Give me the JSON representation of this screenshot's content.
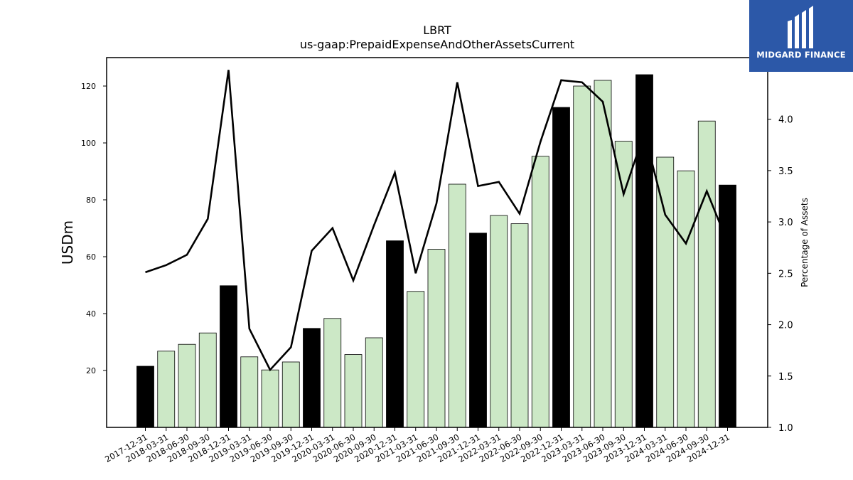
{
  "chart_data": {
    "type": "bar",
    "title": "LBRT",
    "subtitle": "us-gaap:PrepaidExpenseAndOtherAssetsCurrent",
    "ylabel": "USDm",
    "y2label": "Percentage of Assets",
    "ylim": [
      0,
      130
    ],
    "y2lim": [
      1.0,
      4.6
    ],
    "yticks": [
      20,
      40,
      60,
      80,
      100,
      120
    ],
    "y2ticks": [
      1.0,
      1.5,
      2.0,
      2.5,
      3.0,
      3.5,
      4.0,
      4.5
    ],
    "categories": [
      "2017-12-31",
      "2018-03-31",
      "2018-06-30",
      "2018-09-30",
      "2018-12-31",
      "2019-03-31",
      "2019-06-30",
      "2019-09-30",
      "2019-12-31",
      "2020-03-31",
      "2020-06-30",
      "2020-09-30",
      "2020-12-31",
      "2021-03-31",
      "2021-06-30",
      "2021-09-30",
      "2021-12-31",
      "2022-03-31",
      "2022-06-30",
      "2022-09-30",
      "2022-12-31",
      "2023-03-31",
      "2023-06-30",
      "2023-09-30",
      "2023-12-31",
      "2024-03-31",
      "2024-06-30",
      "2024-09-30",
      "2024-12-31"
    ],
    "series": [
      {
        "type": "bar",
        "values": [
          21.5,
          26.8,
          29.2,
          33.2,
          49.8,
          24.8,
          20.2,
          23.0,
          34.8,
          38.3,
          25.6,
          31.5,
          65.6,
          47.8,
          62.6,
          85.5,
          68.3,
          74.5,
          71.6,
          95.3,
          112.5,
          120.0,
          122.0,
          100.6,
          124.0,
          95.0,
          90.2,
          107.7,
          85.2
        ],
        "highlight": [
          true,
          false,
          false,
          false,
          true,
          false,
          false,
          false,
          true,
          false,
          false,
          false,
          true,
          false,
          false,
          false,
          true,
          false,
          false,
          false,
          true,
          false,
          false,
          false,
          true,
          false,
          false,
          false,
          true
        ]
      },
      {
        "type": "line",
        "axis": "right",
        "values": [
          2.51,
          2.58,
          2.68,
          3.03,
          4.48,
          1.96,
          1.56,
          1.78,
          2.72,
          2.94,
          2.43,
          2.97,
          3.48,
          2.5,
          3.18,
          4.36,
          3.35,
          3.39,
          3.08,
          3.78,
          4.38,
          4.36,
          4.17,
          3.27,
          3.87,
          3.07,
          2.79,
          3.3,
          2.8
        ]
      }
    ],
    "colors": {
      "highlight_bar": "#000000",
      "bar": "#cce8c6",
      "line": "#000000"
    }
  },
  "logo": {
    "text": "MIDGARD FINANCE",
    "background": "#2c58a8"
  }
}
